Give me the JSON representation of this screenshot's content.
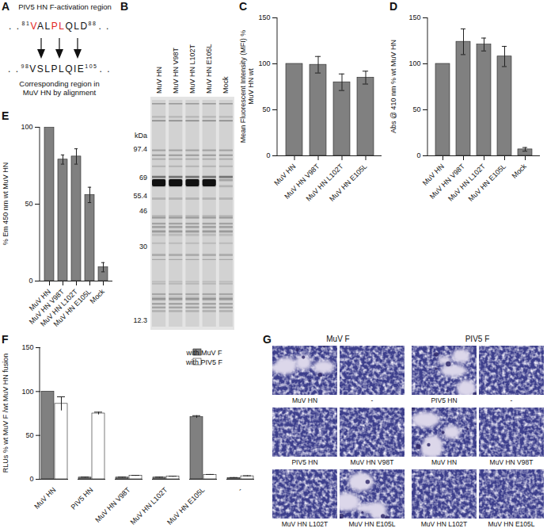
{
  "chart_data": [
    {
      "panel": "C",
      "type": "bar",
      "categories": [
        "MuV HN",
        "MuV HN V98T",
        "MuV HN L102T",
        "MuV HN E105L"
      ],
      "values": [
        100,
        99,
        80,
        85
      ],
      "errors": [
        0,
        9,
        9,
        7
      ],
      "color": "#808080",
      "ylabel": "Mean Fluorescent Intensity (MFI) % MuV HN wt",
      "ylim": [
        0,
        150
      ],
      "yticks": [
        0,
        50,
        100,
        150
      ]
    },
    {
      "panel": "D",
      "type": "bar",
      "categories": [
        "MuV HN",
        "MuV HN V98T",
        "MuV HN L102T",
        "MuV HN E105L",
        "Mock"
      ],
      "values": [
        100,
        124,
        121,
        108,
        7
      ],
      "errors": [
        0,
        14,
        7,
        11,
        2
      ],
      "color": "#808080",
      "ylabel": "Abs @ 410 nm % wt MuV HN",
      "ylim": [
        0,
        150
      ],
      "yticks": [
        0,
        50,
        100,
        150
      ]
    },
    {
      "panel": "E",
      "type": "bar",
      "categories": [
        "MuV HN",
        "MuV HN V98T",
        "MuV HN L102T",
        "MuV HN E105L",
        "Mock"
      ],
      "values": [
        100,
        79,
        81,
        56,
        9
      ],
      "errors": [
        0,
        3,
        5,
        5,
        3
      ],
      "color": "#808080",
      "ylabel": "% Em 450 nm wt MuV HN",
      "ylim": [
        0,
        100
      ],
      "yticks": [
        0,
        50,
        100
      ]
    },
    {
      "panel": "F",
      "type": "bar",
      "categories": [
        "MuV HN",
        "PIV5 HN",
        "MuV HN V98T",
        "MuV HN L102T",
        "MuV HN E105L",
        "-"
      ],
      "series": [
        {
          "name": "with MuV F",
          "color": "#808080",
          "values": [
            100,
            2,
            2,
            2,
            71,
            1.5
          ],
          "errors": [
            0,
            0.5,
            0.5,
            0.5,
            1.5,
            0.5
          ]
        },
        {
          "name": "with PIV5 F",
          "color": "#ffffff",
          "values": [
            86,
            75,
            4,
            3,
            5,
            3.5
          ],
          "errors": [
            8,
            1.5,
            0.5,
            0.5,
            0.5,
            0.5
          ]
        }
      ],
      "ylabel": "RLUs % wt MuV F /wt MuV HN fusion",
      "ylim": [
        0,
        150
      ],
      "yticks": [
        0,
        50,
        100,
        150
      ],
      "legend": "top-right"
    }
  ],
  "panel_A": {
    "panel": "A",
    "title": "PIV5 HN F-activation region",
    "flank": ". .",
    "top_sequence": {
      "start": 81,
      "end": 88,
      "segments": [
        {
          "text": "V",
          "color": "#e3231c"
        },
        {
          "text": "AL",
          "color": "#111111"
        },
        {
          "text": "PL",
          "color": "#e3231c"
        },
        {
          "text": "QLD",
          "color": "#111111"
        }
      ]
    },
    "bottom_sequence": {
      "start": 98,
      "end": 105,
      "segments": [
        {
          "text": "VSLPLQIE",
          "color": "#111111"
        }
      ]
    },
    "caption": "Corresponding region in MuV HN by alignment"
  },
  "panel_B": {
    "panel": "B",
    "unit": "kDa",
    "markers": [
      97.4,
      69,
      55.4,
      46,
      30,
      12.3
    ],
    "lanes": [
      {
        "label": "MuV HN",
        "band": true
      },
      {
        "label": "MuV HN V98T",
        "band": true
      },
      {
        "label": "MuV HN L102T",
        "band": true
      },
      {
        "label": "MuV HN E105L",
        "band": true
      },
      {
        "label": "Mock",
        "band": false
      }
    ]
  },
  "panel_G": {
    "panel": "G",
    "groups": [
      {
        "title": "MuV F",
        "images": [
          {
            "label": "MuV HN",
            "syncytia": true
          },
          {
            "label": "-",
            "syncytia": false
          },
          {
            "label": "PIV5 HN",
            "syncytia": false
          },
          {
            "label": "MuV HN V98T",
            "syncytia": false
          },
          {
            "label": "MuV HN L102T",
            "syncytia": false
          },
          {
            "label": "MuV HN E105L",
            "syncytia": true
          }
        ]
      },
      {
        "title": "PIV5 F",
        "images": [
          {
            "label": "PIV5 HN",
            "syncytia": true
          },
          {
            "label": "-",
            "syncytia": false
          },
          {
            "label": "MuV HN",
            "syncytia": true
          },
          {
            "label": "MuV HN V98T",
            "syncytia": false
          },
          {
            "label": "MuV HN L102T",
            "syncytia": false
          },
          {
            "label": "MuV HN E105L",
            "syncytia": false
          }
        ]
      }
    ]
  }
}
